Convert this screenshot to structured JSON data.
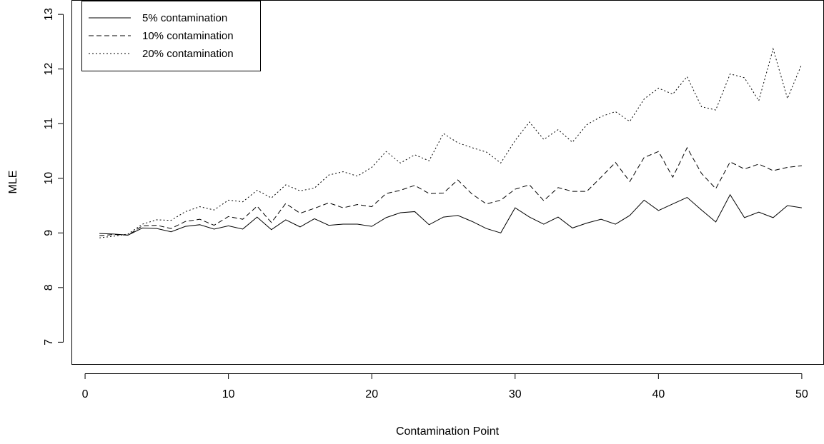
{
  "chart_data": {
    "type": "line",
    "xlabel": "Contamination Point",
    "ylabel": "MLE",
    "xlim": [
      -0.9,
      51.5
    ],
    "ylim": [
      6.6,
      13.25
    ],
    "xticks": [
      0,
      10,
      20,
      30,
      40,
      50
    ],
    "yticks": [
      7,
      8,
      9,
      10,
      11,
      12,
      13
    ],
    "grid": false,
    "legend_position": "top-left",
    "x": [
      1,
      2,
      3,
      4,
      5,
      6,
      7,
      8,
      9,
      10,
      11,
      12,
      13,
      14,
      15,
      16,
      17,
      18,
      19,
      20,
      21,
      22,
      23,
      24,
      25,
      26,
      27,
      28,
      29,
      30,
      31,
      32,
      33,
      34,
      35,
      36,
      37,
      38,
      39,
      40,
      41,
      42,
      43,
      44,
      45,
      46,
      47,
      48,
      49,
      50
    ],
    "series": [
      {
        "name": "5% contamination",
        "dash": "solid",
        "values": [
          8.99,
          8.98,
          8.96,
          9.09,
          9.08,
          9.02,
          9.12,
          9.15,
          9.07,
          9.13,
          9.07,
          9.29,
          9.06,
          9.24,
          9.11,
          9.26,
          9.14,
          9.16,
          9.16,
          9.12,
          9.28,
          9.37,
          9.39,
          9.15,
          9.29,
          9.32,
          9.21,
          9.08,
          9.0,
          9.46,
          9.29,
          9.16,
          9.29,
          9.09,
          9.18,
          9.25,
          9.16,
          9.32,
          9.6,
          9.41,
          9.53,
          9.65,
          9.42,
          9.2,
          9.7,
          9.28,
          9.38,
          9.28,
          9.5,
          9.46
        ]
      },
      {
        "name": "10% contamination",
        "dash": "dashed",
        "values": [
          8.95,
          8.97,
          8.96,
          9.13,
          9.14,
          9.08,
          9.21,
          9.25,
          9.14,
          9.3,
          9.25,
          9.49,
          9.19,
          9.54,
          9.36,
          9.45,
          9.55,
          9.46,
          9.52,
          9.48,
          9.72,
          9.78,
          9.87,
          9.72,
          9.73,
          9.97,
          9.71,
          9.53,
          9.6,
          9.8,
          9.88,
          9.59,
          9.83,
          9.76,
          9.76,
          10.02,
          10.29,
          9.94,
          10.38,
          10.49,
          10.02,
          10.56,
          10.09,
          9.81,
          10.3,
          10.17,
          10.26,
          10.14,
          10.2,
          10.23
        ]
      },
      {
        "name": "20% contamination",
        "dash": "dotted",
        "values": [
          8.91,
          8.94,
          8.98,
          9.16,
          9.24,
          9.23,
          9.39,
          9.48,
          9.42,
          9.6,
          9.57,
          9.78,
          9.64,
          9.88,
          9.77,
          9.82,
          10.06,
          10.12,
          10.04,
          10.2,
          10.49,
          10.28,
          10.43,
          10.32,
          10.82,
          10.65,
          10.56,
          10.48,
          10.28,
          10.69,
          11.03,
          10.71,
          10.89,
          10.66,
          10.98,
          11.13,
          11.22,
          11.04,
          11.45,
          11.65,
          11.54,
          11.86,
          11.31,
          11.25,
          11.91,
          11.84,
          11.42,
          12.37,
          11.46,
          12.09
        ]
      }
    ]
  }
}
